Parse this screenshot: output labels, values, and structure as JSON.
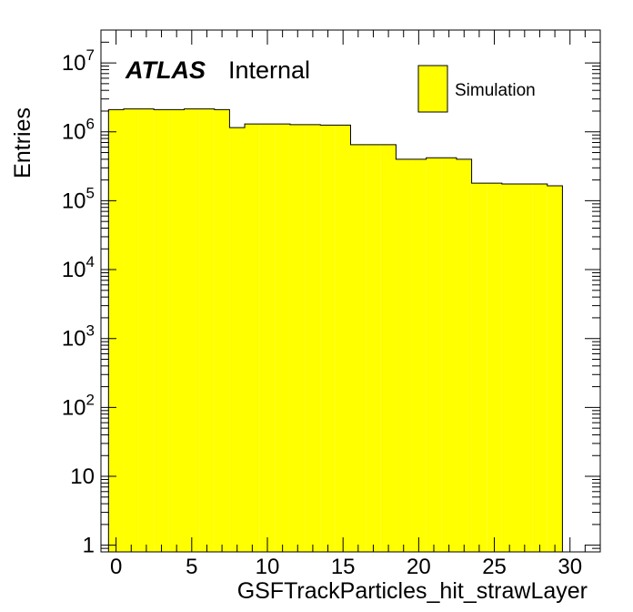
{
  "chart_data": {
    "type": "bar",
    "style": "histogram",
    "title": "",
    "xlabel": "GSFTrackParticles_hit_strawLayer",
    "ylabel": "Entries",
    "xlim": [
      -1,
      32
    ],
    "ylim": [
      0.8,
      30000000
    ],
    "y_scale": "log",
    "grid": false,
    "legend_position": "top-right",
    "label_atlas": "ATLAS",
    "label_status": "Internal",
    "x_ticks": [
      0,
      5,
      10,
      15,
      20,
      25,
      30
    ],
    "x_tick_labels": [
      "0",
      "5",
      "10",
      "15",
      "20",
      "25",
      "30"
    ],
    "y_ticks": [
      {
        "base": "1",
        "exp": ""
      },
      {
        "base": "10",
        "exp": ""
      },
      {
        "base": "10",
        "exp": "2"
      },
      {
        "base": "10",
        "exp": "3"
      },
      {
        "base": "10",
        "exp": "4"
      },
      {
        "base": "10",
        "exp": "5"
      },
      {
        "base": "10",
        "exp": "6"
      },
      {
        "base": "10",
        "exp": "7"
      }
    ],
    "fill_color": "#ffff00",
    "line_color": "#000000",
    "bin_edges": [
      -0.5,
      0.5,
      1.5,
      2.5,
      3.5,
      4.5,
      5.5,
      6.5,
      7.5,
      8.5,
      9.5,
      10.5,
      11.5,
      12.5,
      13.5,
      14.5,
      15.5,
      16.5,
      17.5,
      18.5,
      19.5,
      20.5,
      21.5,
      22.5,
      23.5,
      24.5,
      25.5,
      26.5,
      27.5,
      28.5,
      29.5
    ],
    "series": [
      {
        "name": "Simulation",
        "values": [
          2100000,
          2150000,
          2150000,
          2100000,
          2100000,
          2150000,
          2150000,
          2100000,
          1150000,
          1300000,
          1300000,
          1300000,
          1270000,
          1270000,
          1250000,
          1250000,
          650000,
          650000,
          650000,
          400000,
          400000,
          420000,
          420000,
          400000,
          180000,
          180000,
          175000,
          175000,
          175000,
          165000
        ]
      }
    ]
  }
}
